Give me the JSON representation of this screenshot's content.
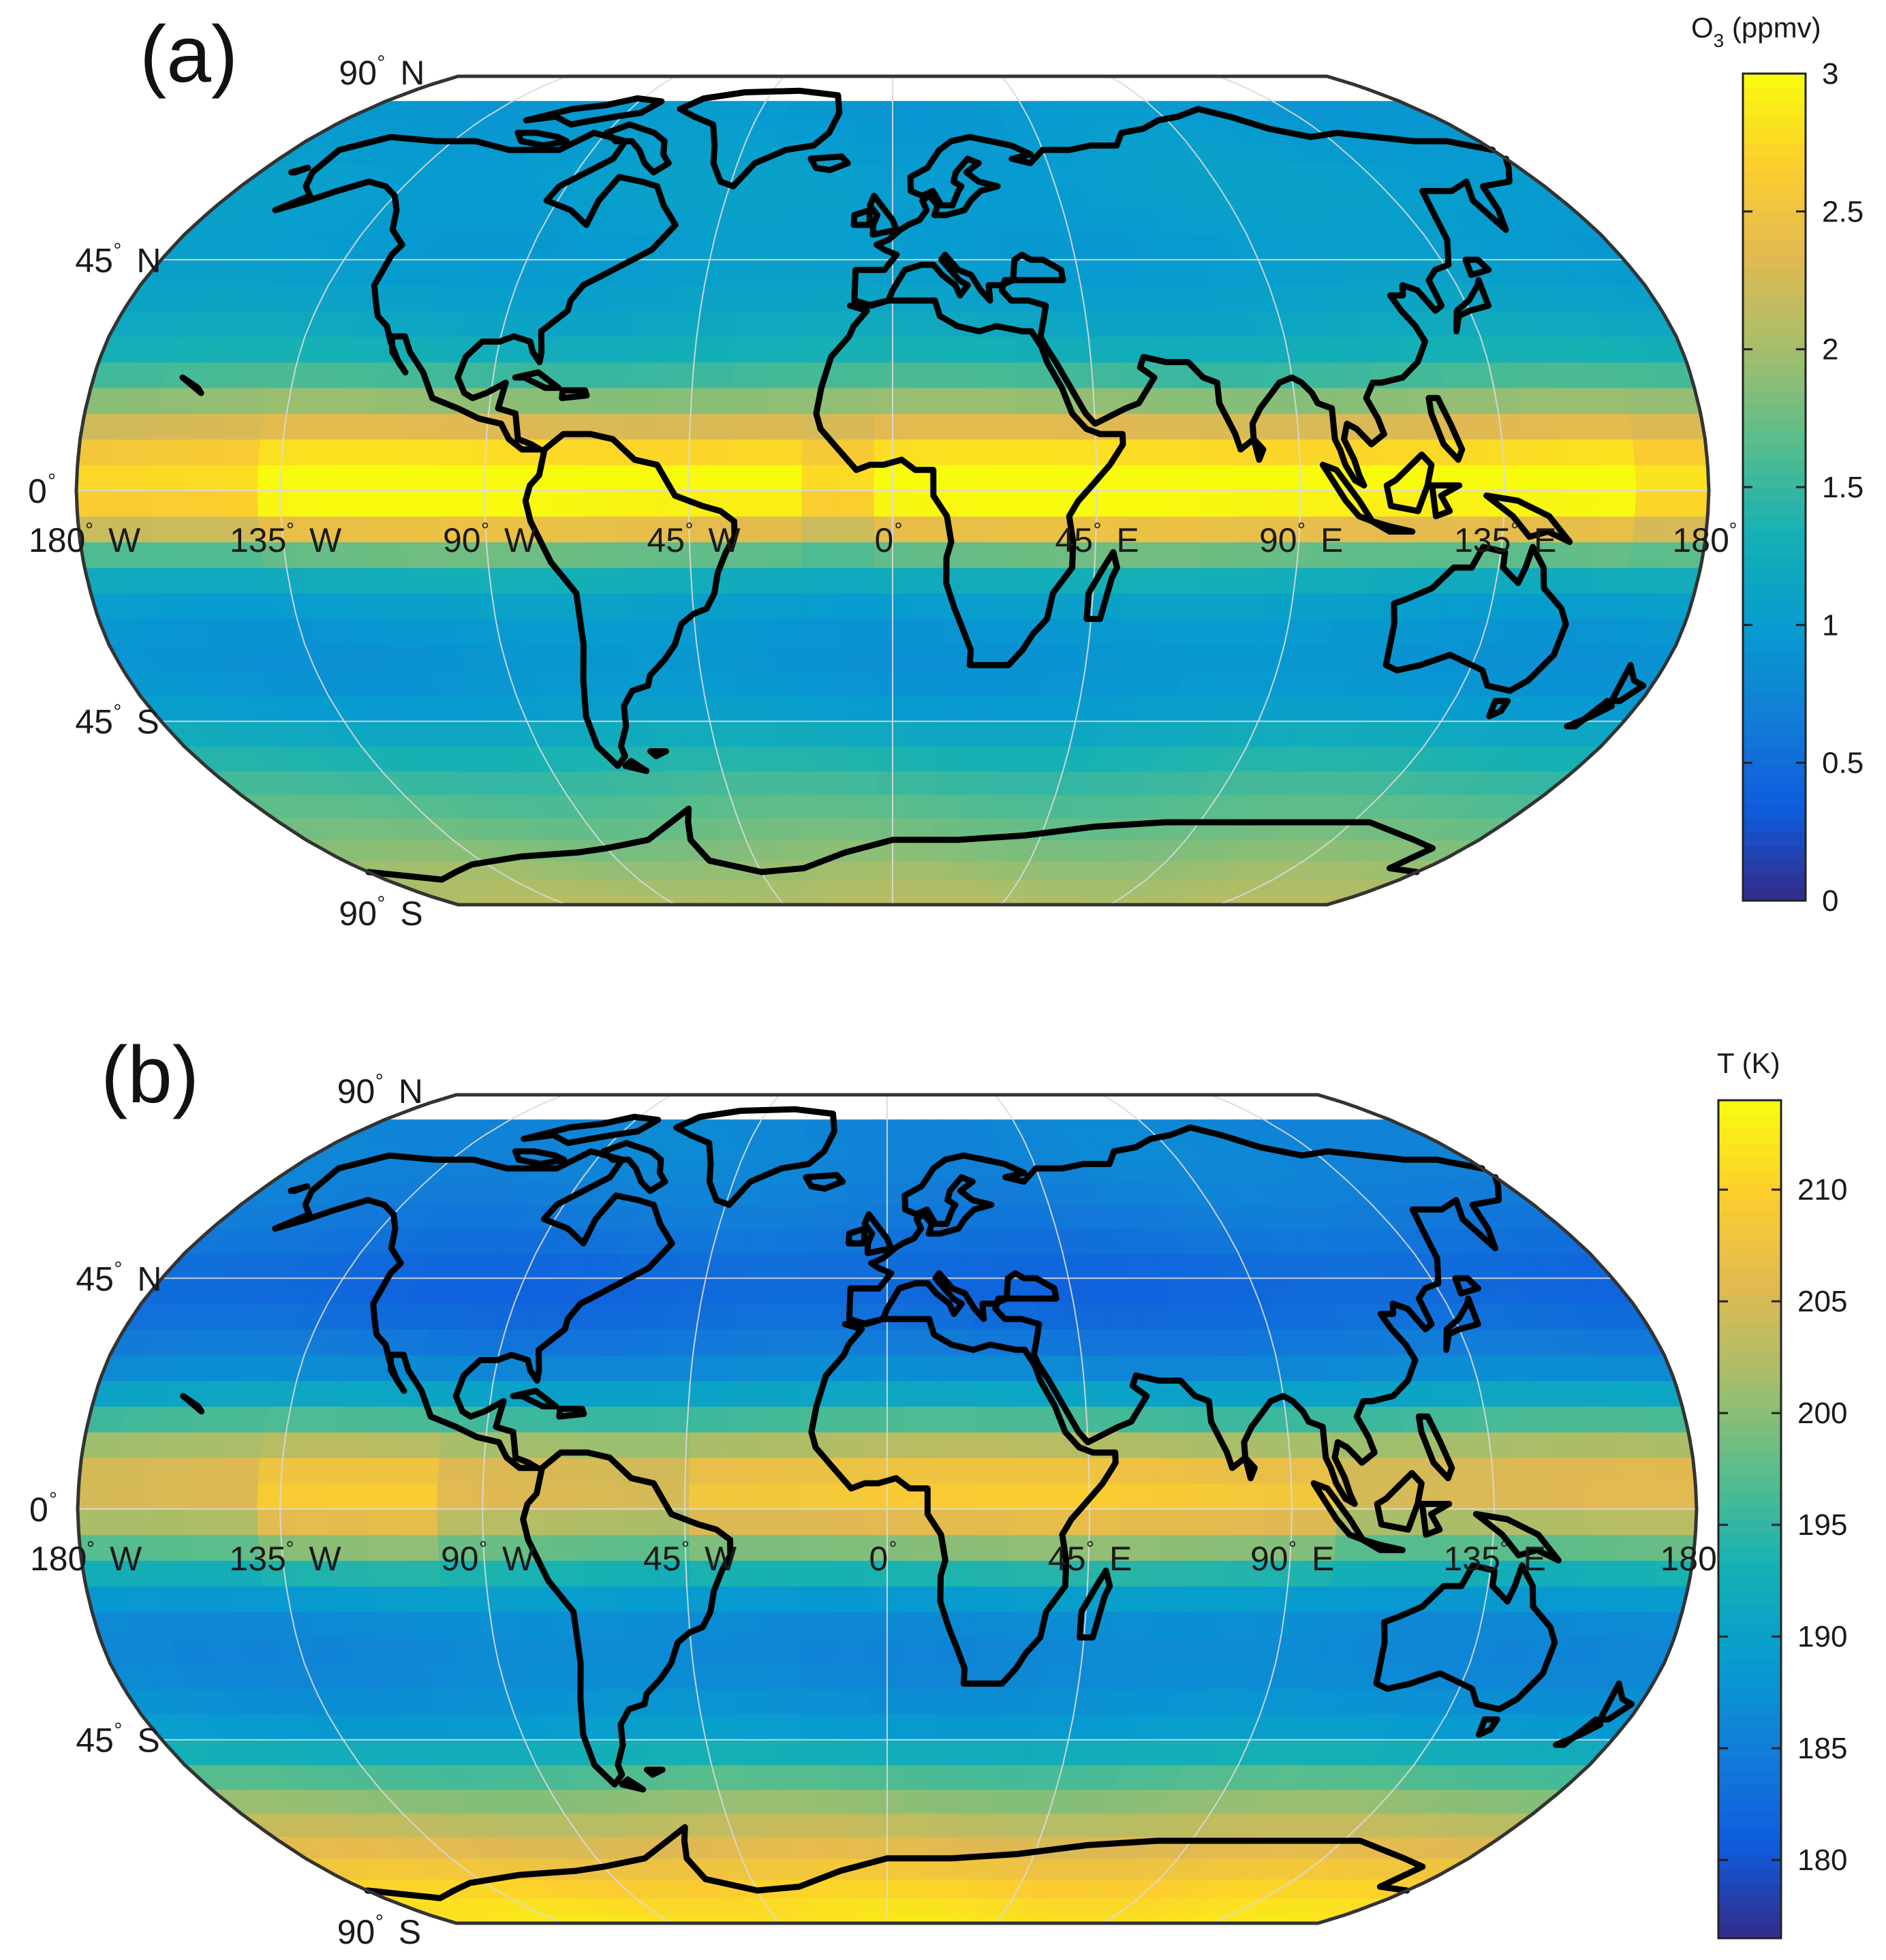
{
  "chart_data": [
    {
      "type": "heatmap",
      "panel_label": "(a)",
      "projection": "Robinson",
      "quantity_symbol": "O",
      "quantity_subscript": "3",
      "quantity_unit": " (ppmv)",
      "colormap": "parula",
      "clim": [
        0,
        3
      ],
      "colorbar_ticks": [
        0,
        0.5,
        1,
        1.5,
        2,
        2.5,
        3
      ],
      "colorbar_tick_labels": [
        "0",
        "0.5",
        "1",
        "1.5",
        "2",
        "2.5",
        "3"
      ],
      "lat_coverage": [
        -90,
        80
      ],
      "zonal_profile": {
        "lat": [
          80,
          70,
          60,
          50,
          45,
          40,
          30,
          25,
          20,
          15,
          10,
          5,
          0,
          -5,
          -10,
          -15,
          -20,
          -30,
          -40,
          -45,
          -50,
          -60,
          -70,
          -80,
          -90
        ],
        "value": [
          0.95,
          1.0,
          1.05,
          1.0,
          1.0,
          1.05,
          1.2,
          1.4,
          1.7,
          2.1,
          2.5,
          2.9,
          3.0,
          2.7,
          2.0,
          1.4,
          1.1,
          0.9,
          0.95,
          1.1,
          1.3,
          1.6,
          1.8,
          2.0,
          2.1
        ]
      },
      "tropical_peak_longitude_ranges": [
        [
          -140,
          -20
        ],
        [
          0,
          160
        ]
      ]
    },
    {
      "type": "heatmap",
      "panel_label": "(b)",
      "projection": "Robinson",
      "quantity_symbol": "T",
      "quantity_subscript": "",
      "quantity_unit": " (K)",
      "colormap": "parula",
      "clim": [
        176.5,
        214
      ],
      "colorbar_ticks": [
        180,
        185,
        190,
        195,
        200,
        205,
        210
      ],
      "colorbar_tick_labels": [
        "180",
        "185",
        "190",
        "195",
        "200",
        "205",
        "210"
      ],
      "lat_coverage": [
        -90,
        80
      ],
      "zonal_profile": {
        "lat": [
          80,
          70,
          60,
          50,
          45,
          40,
          30,
          25,
          20,
          15,
          10,
          5,
          0,
          -5,
          -10,
          -15,
          -20,
          -30,
          -40,
          -45,
          -50,
          -60,
          -70,
          -80,
          -90
        ],
        "value": [
          186,
          186,
          185,
          183,
          182,
          182,
          185,
          188,
          193,
          199,
          205,
          208,
          207,
          202,
          196,
          191,
          187,
          186,
          188,
          190,
          195,
          202,
          207,
          211,
          212
        ]
      },
      "tropical_peak_longitude_ranges": [
        [
          -140,
          -100
        ],
        [
          -40,
          100
        ]
      ]
    }
  ],
  "map_labels": {
    "lat_90n": "90",
    "lat_90n_hemi": "N",
    "lat_45n": "45",
    "lat_45n_hemi": "N",
    "lat_0": "0",
    "lat_45s": "45",
    "lat_45s_hemi": "S",
    "lat_90s": "90",
    "lat_90s_hemi": "S",
    "lon_180w": "180",
    "lon_180w_hemi": "W",
    "lon_135w": "135",
    "lon_135w_hemi": "W",
    "lon_90w": "90",
    "lon_90w_hemi": "W",
    "lon_45w": "45",
    "lon_45w_hemi": "W",
    "lon_0": "0",
    "lon_45e": "45",
    "lon_45e_hemi": "E",
    "lon_90e": "90",
    "lon_90e_hemi": "E",
    "lon_135e": "135",
    "lon_135e_hemi": "E",
    "lon_180": "180",
    "degree_sign": "°"
  }
}
